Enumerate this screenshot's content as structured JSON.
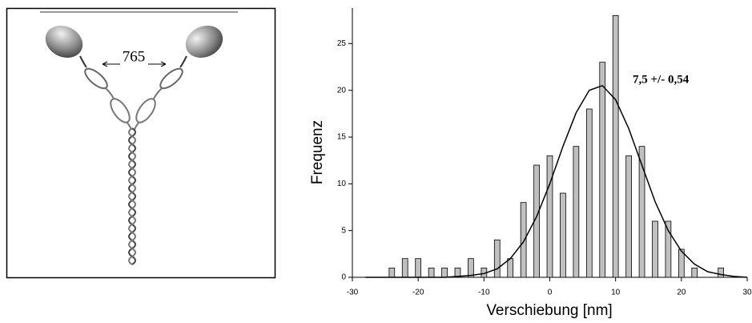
{
  "diagram": {
    "label": "765"
  },
  "chart_data": {
    "type": "bar",
    "xlabel": "Verschiebung [nm]",
    "ylabel": "Frequenz",
    "annotation": "7,5 +/- 0,54",
    "xlim": [
      -30,
      30
    ],
    "xticks": [
      -30,
      -20,
      -10,
      0,
      10,
      20,
      30
    ],
    "ylim": [
      0,
      28.8
    ],
    "yticks": [
      0,
      5,
      10,
      15,
      20,
      25
    ],
    "series": [
      {
        "type": "bar",
        "color": "#c0c0c0",
        "x": [
          -24,
          -22,
          -20,
          -18,
          -16,
          -14,
          -12,
          -10,
          -8,
          -6,
          -4,
          -2,
          0,
          2,
          4,
          6,
          8,
          10,
          12,
          14,
          16,
          18,
          20,
          22,
          26
        ],
        "values": [
          1,
          2,
          2,
          1,
          1,
          1,
          2,
          1,
          4,
          2,
          8,
          12,
          13,
          9,
          14,
          18,
          23,
          28,
          13,
          14,
          6,
          6,
          3,
          1,
          1
        ]
      },
      {
        "type": "line",
        "color": "#000000",
        "x": [
          -28,
          -26,
          -24,
          -22,
          -20,
          -18,
          -16,
          -14,
          -12,
          -10,
          -8,
          -6,
          -4,
          -2,
          0,
          2,
          4,
          6,
          8,
          10,
          12,
          14,
          16,
          18,
          20,
          22,
          24,
          26,
          28,
          30
        ],
        "values": [
          0,
          0,
          0,
          0,
          0,
          0,
          0,
          0.1,
          0.2,
          0.4,
          0.9,
          2.0,
          3.8,
          6.5,
          10.0,
          14.0,
          17.6,
          20.0,
          20.5,
          19.0,
          15.9,
          12.0,
          8.1,
          5.0,
          2.8,
          1.4,
          0.6,
          0.3,
          0.1,
          0
        ]
      }
    ]
  }
}
